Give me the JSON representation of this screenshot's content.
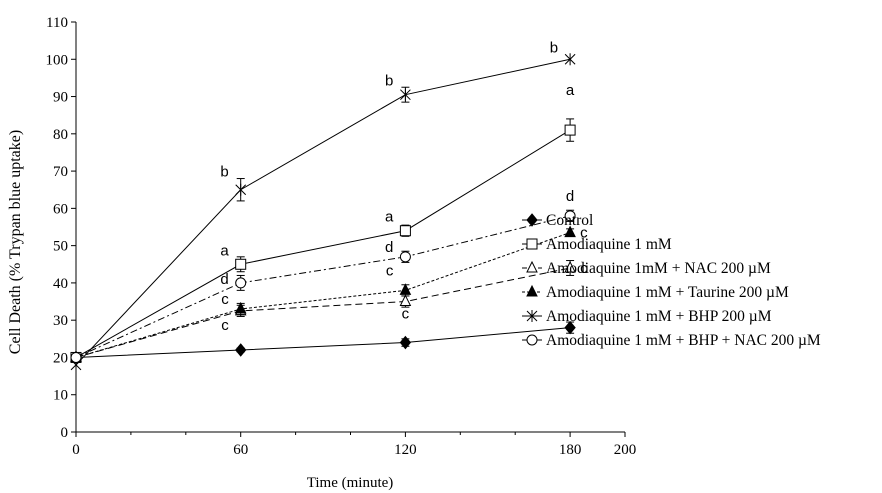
{
  "chart_data": {
    "type": "line",
    "title": "",
    "xlabel": "Time (minute)",
    "ylabel": "Cell Death (% Trypan blue uptake)",
    "xlim": [
      0,
      200
    ],
    "ylim": [
      0,
      110
    ],
    "x_ticks": [
      0,
      60,
      120,
      180,
      200
    ],
    "y_ticks": [
      0,
      10,
      20,
      30,
      40,
      50,
      60,
      70,
      80,
      90,
      100,
      110
    ],
    "grid": false,
    "legend_position": "right",
    "x": [
      0,
      60,
      120,
      180
    ],
    "series": [
      {
        "name": "Control",
        "marker": "filled-diamond",
        "line_style": "solid",
        "values": [
          20,
          22,
          24,
          28
        ],
        "errors": [
          0,
          0.5,
          1,
          1.5
        ],
        "labels": [
          "",
          "",
          "",
          ""
        ]
      },
      {
        "name": "Amodiaquine 1 mM",
        "marker": "open-square",
        "line_style": "solid",
        "values": [
          20,
          45,
          54,
          81
        ],
        "errors": [
          0,
          2,
          1.5,
          3
        ],
        "labels": [
          "",
          "a",
          "a",
          "a"
        ]
      },
      {
        "name": "Amodiaquine 1mM + NAC 200 µM",
        "marker": "open-triangle",
        "line_style": "dashed",
        "values": [
          20,
          32.5,
          35,
          44
        ],
        "errors": [
          0,
          1.5,
          1.5,
          2
        ],
        "labels": [
          "",
          "c",
          "c",
          "c"
        ]
      },
      {
        "name": "Amodiaquine 1 mM + Taurine 200 µM",
        "marker": "filled-triangle",
        "line_style": "dotted",
        "values": [
          20,
          33,
          38,
          53.5
        ],
        "errors": [
          0,
          1.5,
          1.5,
          1
        ],
        "labels": [
          "",
          "c",
          "c",
          "c"
        ]
      },
      {
        "name": "Amodiaquine 1 mM + BHP 200 µM",
        "marker": "asterisk",
        "line_style": "solid",
        "values": [
          18,
          65,
          90.5,
          100
        ],
        "errors": [
          0,
          3,
          2,
          0
        ],
        "labels": [
          "",
          "b",
          "b",
          "b"
        ]
      },
      {
        "name": "Amodiaquine 1 mM + BHP + NAC 200 µM",
        "marker": "open-circle",
        "line_style": "dash-dot",
        "values": [
          20,
          40,
          47,
          58
        ],
        "errors": [
          0,
          2,
          1.5,
          1.5
        ],
        "labels": [
          "",
          "d",
          "d",
          "d"
        ]
      }
    ]
  }
}
